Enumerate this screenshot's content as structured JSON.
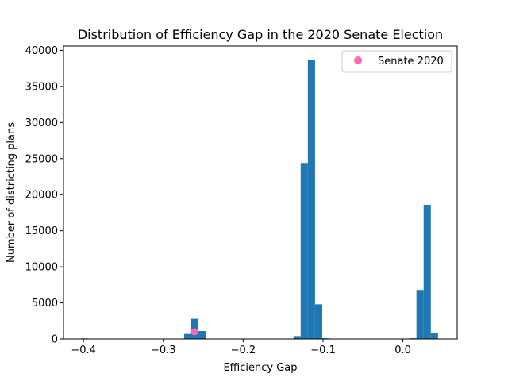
{
  "chart_data": {
    "type": "bar",
    "title": "Distribution of Efficiency Gap in the 2020 Senate Election",
    "xlabel": "Efficiency Gap",
    "ylabel": "Number of districting plans",
    "xlim": [
      -0.425,
      0.068
    ],
    "ylim": [
      0,
      40600
    ],
    "xticks": [
      -0.4,
      -0.3,
      -0.2,
      -0.1,
      0.0
    ],
    "xtick_labels": [
      "−0.4",
      "−0.3",
      "−0.2",
      "−0.1",
      "0.0"
    ],
    "yticks": [
      0,
      5000,
      10000,
      15000,
      20000,
      25000,
      30000,
      35000,
      40000
    ],
    "ytick_labels": [
      "0",
      "5000",
      "10000",
      "15000",
      "20000",
      "25000",
      "30000",
      "35000",
      "40000"
    ],
    "grid": false,
    "bar_color": "#1f77b4",
    "bins": [
      {
        "x0": -0.403,
        "x1": -0.394,
        "value": 80
      },
      {
        "x0": -0.274,
        "x1": -0.265,
        "value": 700
      },
      {
        "x0": -0.265,
        "x1": -0.256,
        "value": 2800
      },
      {
        "x0": -0.256,
        "x1": -0.247,
        "value": 1100
      },
      {
        "x0": -0.137,
        "x1": -0.128,
        "value": 400
      },
      {
        "x0": -0.128,
        "x1": -0.119,
        "value": 24400
      },
      {
        "x0": -0.119,
        "x1": -0.11,
        "value": 38700
      },
      {
        "x0": -0.11,
        "x1": -0.101,
        "value": 4800
      },
      {
        "x0": -0.101,
        "x1": -0.092,
        "value": 100
      },
      {
        "x0": 0.008,
        "x1": 0.017,
        "value": 100
      },
      {
        "x0": 0.017,
        "x1": 0.026,
        "value": 6800
      },
      {
        "x0": 0.026,
        "x1": 0.035,
        "value": 18600
      },
      {
        "x0": 0.035,
        "x1": 0.044,
        "value": 800
      }
    ],
    "markers": [
      {
        "name": "Senate 2020",
        "x": -0.261,
        "y": 1000,
        "color": "#ff69b4"
      }
    ],
    "legend": {
      "placement": "top-right",
      "entries": [
        {
          "label": "Senate 2020",
          "color": "#ff69b4",
          "marker": "circle"
        }
      ]
    }
  }
}
